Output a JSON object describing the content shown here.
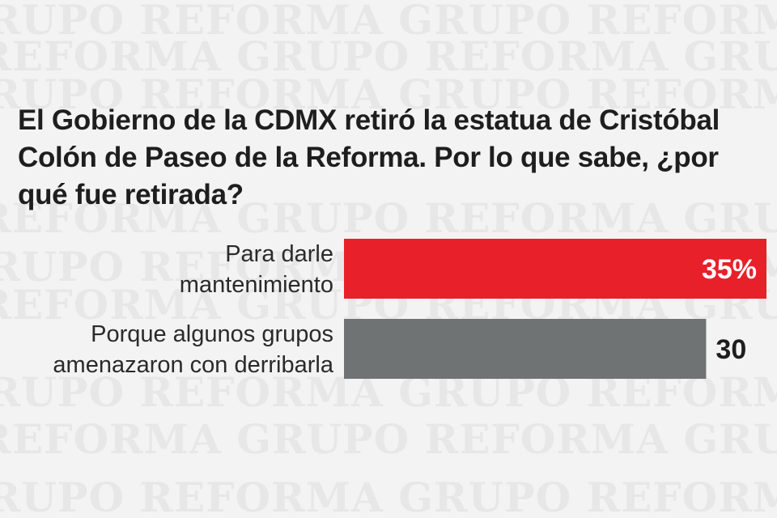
{
  "watermark": {
    "text": "GRUPO REFORMA"
  },
  "chart_data": {
    "type": "bar",
    "orientation": "horizontal",
    "title": "El Gobierno de la CDMX retiró la estatua de Cristóbal Colón de Paseo de la Reforma. Por lo que sabe, ¿por qué fue retirada?",
    "categories": [
      "Para darle mantenimiento",
      "Porque algunos grupos amenazaron con derribarla"
    ],
    "category_lines": [
      [
        "Para darle",
        "mantenimiento"
      ],
      [
        "Porque algunos grupos",
        "amenazaron con derribarla"
      ]
    ],
    "values": [
      35,
      30
    ],
    "value_labels": [
      "35%",
      "30"
    ],
    "colors": [
      "#e8202a",
      "#6f7374"
    ],
    "xlim": [
      0,
      35
    ],
    "grid": false
  }
}
